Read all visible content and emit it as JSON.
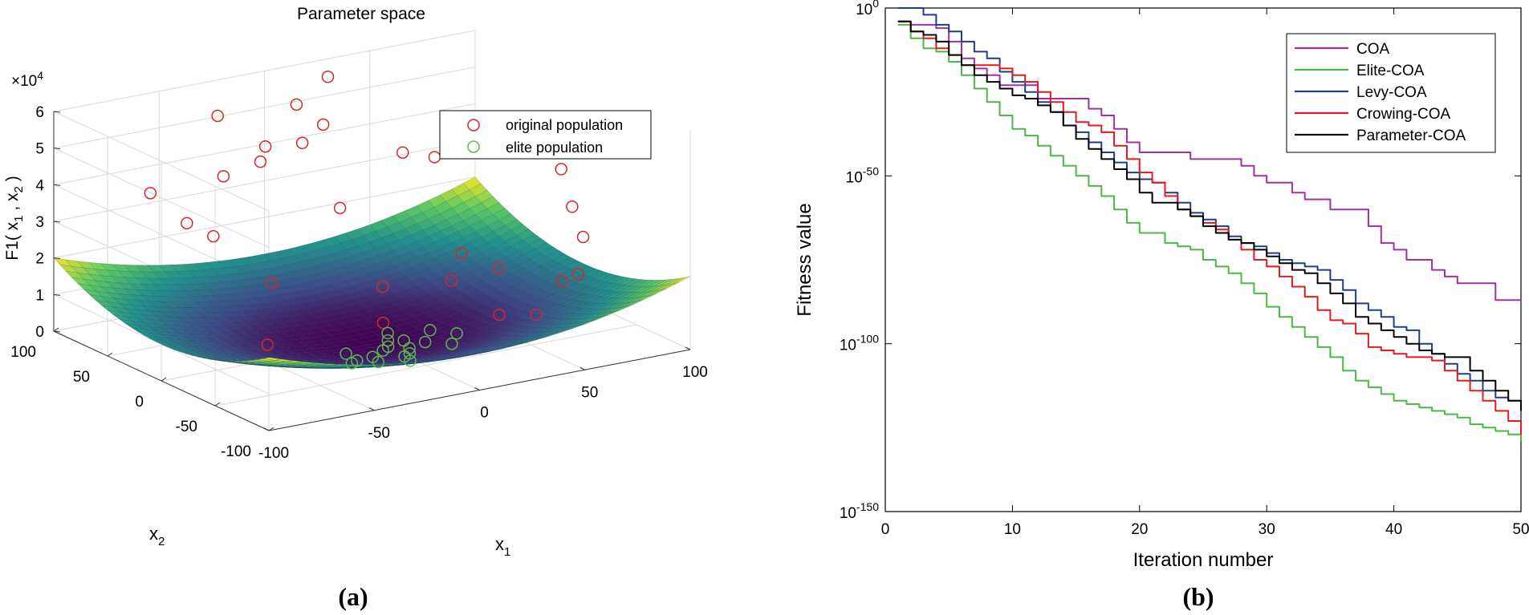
{
  "figure": {
    "panel_a_label": "(a)",
    "panel_b_label": "(b)"
  },
  "chart_data": [
    {
      "type": "surface3d",
      "title": "Parameter space",
      "xlabel": "x",
      "xlabel_sub": "1",
      "ylabel": "x",
      "ylabel_sub": "2",
      "zlabel": "F1( x  , x  )",
      "zlabel_parts": {
        "f": "F1( x",
        "s1": "1",
        "mid": " , x",
        "s2": "2",
        "end": " )"
      },
      "z_exponent_label": "×10",
      "z_exponent": "4",
      "x_ticks": [
        "-100",
        "-50",
        "0",
        "50",
        "100"
      ],
      "y_ticks": [
        "-100",
        "-50",
        "0",
        "50",
        "100"
      ],
      "z_ticks": [
        "0",
        "1",
        "2",
        "3",
        "4",
        "5",
        "6"
      ],
      "xlim": [
        -100,
        100
      ],
      "ylim": [
        -100,
        100
      ],
      "zlim": [
        0,
        60000
      ],
      "surface_function": "x1^2 + x2^2",
      "colormap": [
        "#440154",
        "#3b528b",
        "#21918c",
        "#5ec962",
        "#fde725"
      ],
      "grid": true,
      "legend": {
        "position": "top-right",
        "entries": [
          {
            "name": "original population",
            "color": "#d62728"
          },
          {
            "name": "elite population",
            "color": "#59b94a"
          }
        ]
      },
      "original_population": [
        {
          "x": -95,
          "y": 20,
          "z": 48000
        },
        {
          "x": -70,
          "y": 35,
          "z": 35000
        },
        {
          "x": -60,
          "y": 30,
          "z": 31000
        },
        {
          "x": -45,
          "y": 50,
          "z": 43000
        },
        {
          "x": -35,
          "y": 75,
          "z": 55000
        },
        {
          "x": -30,
          "y": 45,
          "z": 46000
        },
        {
          "x": -20,
          "y": 60,
          "z": 47000
        },
        {
          "x": -5,
          "y": 55,
          "z": 47000
        },
        {
          "x": 5,
          "y": 80,
          "z": 53000
        },
        {
          "x": 10,
          "y": 65,
          "z": 49000
        },
        {
          "x": 25,
          "y": 90,
          "z": 57000
        },
        {
          "x": 35,
          "y": 40,
          "z": 42000
        },
        {
          "x": 45,
          "y": 30,
          "z": 41000
        },
        {
          "x": -5,
          "y": 20,
          "z": 34000
        },
        {
          "x": -70,
          "y": -40,
          "z": 12000
        },
        {
          "x": -45,
          "y": 5,
          "z": 20000
        },
        {
          "x": -10,
          "y": -30,
          "z": 10000
        },
        {
          "x": 0,
          "y": -10,
          "z": 16000
        },
        {
          "x": 40,
          "y": -5,
          "z": 20000
        },
        {
          "x": 30,
          "y": -15,
          "z": 15000
        },
        {
          "x": 55,
          "y": -10,
          "z": 15000
        },
        {
          "x": 40,
          "y": -40,
          "z": 8000
        },
        {
          "x": 55,
          "y": -45,
          "z": 7000
        },
        {
          "x": 75,
          "y": -30,
          "z": 12000
        },
        {
          "x": 80,
          "y": -35,
          "z": 14000
        },
        {
          "x": 90,
          "y": -20,
          "z": 21000
        },
        {
          "x": 95,
          "y": 0,
          "z": 26000
        },
        {
          "x": 100,
          "y": 20,
          "z": 33000
        },
        {
          "x": 90,
          "y": 40,
          "z": 40000
        }
      ],
      "elite_population": [
        {
          "x": -30,
          "y": -40,
          "z": 2500
        },
        {
          "x": -25,
          "y": -35,
          "z": 2000
        },
        {
          "x": -20,
          "y": -45,
          "z": 2400
        },
        {
          "x": -15,
          "y": -30,
          "z": 1200
        },
        {
          "x": -10,
          "y": -55,
          "z": 3000
        },
        {
          "x": -5,
          "y": -20,
          "z": 500
        },
        {
          "x": 0,
          "y": -15,
          "z": 300
        },
        {
          "x": 5,
          "y": -25,
          "z": 700
        },
        {
          "x": 10,
          "y": -10,
          "z": 200
        },
        {
          "x": 15,
          "y": -20,
          "z": 600
        },
        {
          "x": 5,
          "y": -5,
          "z": 100
        },
        {
          "x": -5,
          "y": -40,
          "z": 1600
        },
        {
          "x": 20,
          "y": -35,
          "z": 1600
        },
        {
          "x": 25,
          "y": -5,
          "z": 700
        },
        {
          "x": 30,
          "y": -20,
          "z": 1300
        },
        {
          "x": 10,
          "y": 5,
          "z": 200
        },
        {
          "x": -20,
          "y": -15,
          "z": 600
        },
        {
          "x": 0,
          "y": -35,
          "z": 1200
        }
      ]
    },
    {
      "type": "line",
      "xlabel": "Iteration number",
      "ylabel": "Fitness value",
      "x_scale": "linear",
      "y_scale": "log",
      "xlim": [
        0,
        50
      ],
      "ylim_exponent": [
        -150,
        0
      ],
      "x_ticks": [
        "0",
        "10",
        "20",
        "30",
        "40",
        "50"
      ],
      "y_ticks": [
        {
          "base": "10",
          "exp": "0",
          "value_exp": 0
        },
        {
          "base": "10",
          "exp": "-50",
          "value_exp": -50
        },
        {
          "base": "10",
          "exp": "-100",
          "value_exp": -100
        },
        {
          "base": "10",
          "exp": "-150",
          "value_exp": -150
        }
      ],
      "grid": false,
      "legend": {
        "position": "top-right"
      },
      "series": [
        {
          "name": "COA",
          "color": "#a3309e",
          "x": [
            1,
            2,
            3,
            4,
            5,
            6,
            7,
            8,
            9,
            10,
            11,
            12,
            13,
            14,
            15,
            16,
            17,
            18,
            19,
            20,
            21,
            22,
            23,
            24,
            25,
            26,
            27,
            28,
            29,
            30,
            31,
            32,
            33,
            34,
            35,
            36,
            37,
            38,
            39,
            40,
            41,
            42,
            43,
            44,
            45,
            46,
            47,
            48,
            49,
            50
          ],
          "y_exp": [
            -4,
            -5,
            -5,
            -6,
            -10,
            -15,
            -18,
            -20,
            -23,
            -23,
            -23,
            -27,
            -27,
            -27,
            -27,
            -30,
            -32,
            -36,
            -40,
            -43,
            -43,
            -43,
            -43,
            -45,
            -45,
            -45,
            -45,
            -47,
            -50,
            -52,
            -52,
            -55,
            -57,
            -57,
            -60,
            -60,
            -60,
            -65,
            -70,
            -72,
            -75,
            -75,
            -78,
            -80,
            -82,
            -82,
            -82,
            -87,
            -87,
            -87
          ]
        },
        {
          "name": "Elite-COA",
          "color": "#4cb848",
          "x": [
            1,
            2,
            3,
            4,
            5,
            6,
            7,
            8,
            9,
            10,
            11,
            12,
            13,
            14,
            15,
            16,
            17,
            18,
            19,
            20,
            21,
            22,
            23,
            24,
            25,
            26,
            27,
            28,
            29,
            30,
            31,
            32,
            33,
            34,
            35,
            36,
            37,
            38,
            39,
            40,
            41,
            42,
            43,
            44,
            45,
            46,
            47,
            48,
            49,
            50
          ],
          "y_exp": [
            -5,
            -9,
            -12,
            -13,
            -16,
            -20,
            -24,
            -28,
            -32,
            -36,
            -38,
            -41,
            -44,
            -47,
            -50,
            -53,
            -56,
            -60,
            -64,
            -67,
            -67,
            -70,
            -71,
            -72,
            -75,
            -77,
            -79,
            -82,
            -85,
            -89,
            -92,
            -95,
            -98,
            -101,
            -104,
            -108,
            -111,
            -113,
            -115,
            -117,
            -118,
            -119,
            -120,
            -121,
            -122,
            -124,
            -125,
            -126,
            -127,
            -129
          ]
        },
        {
          "name": "Levy-COA",
          "color": "#1f3d8e",
          "x": [
            1,
            2,
            3,
            4,
            5,
            6,
            7,
            8,
            9,
            10,
            11,
            12,
            13,
            14,
            15,
            16,
            17,
            18,
            19,
            20,
            21,
            22,
            23,
            24,
            25,
            26,
            27,
            28,
            29,
            30,
            31,
            32,
            33,
            34,
            35,
            36,
            37,
            38,
            39,
            40,
            41,
            42,
            43,
            44,
            45,
            46,
            47,
            48,
            49,
            50
          ],
          "y_exp": [
            0,
            0,
            -2,
            -5,
            -7,
            -10,
            -13,
            -15,
            -19,
            -22,
            -25,
            -28,
            -31,
            -35,
            -37,
            -40,
            -43,
            -46,
            -49,
            -51,
            -52,
            -55,
            -58,
            -61,
            -63,
            -65,
            -68,
            -70,
            -71,
            -73,
            -75,
            -76,
            -77,
            -78,
            -81,
            -84,
            -88,
            -90,
            -92,
            -95,
            -96,
            -100,
            -103,
            -106,
            -109,
            -111,
            -114,
            -116,
            -117,
            -119
          ]
        },
        {
          "name": "Crowing-COA",
          "color": "#e41a1c",
          "x": [
            1,
            2,
            3,
            4,
            5,
            6,
            7,
            8,
            9,
            10,
            11,
            12,
            13,
            14,
            15,
            16,
            17,
            18,
            19,
            20,
            21,
            22,
            23,
            24,
            25,
            26,
            27,
            28,
            29,
            30,
            31,
            32,
            33,
            34,
            35,
            36,
            37,
            38,
            39,
            40,
            41,
            42,
            43,
            44,
            45,
            46,
            47,
            48,
            49,
            50
          ],
          "y_exp": [
            -4,
            -7,
            -9,
            -12,
            -14,
            -17,
            -17,
            -17,
            -18,
            -20,
            -22,
            -25,
            -28,
            -31,
            -34,
            -35,
            -37,
            -41,
            -45,
            -49,
            -52,
            -56,
            -60,
            -62,
            -64,
            -66,
            -69,
            -72,
            -75,
            -77,
            -80,
            -83,
            -86,
            -90,
            -93,
            -94,
            -97,
            -101,
            -102,
            -103,
            -104,
            -104,
            -105,
            -108,
            -111,
            -114,
            -117,
            -120,
            -123,
            -127
          ]
        },
        {
          "name": "Parameter-COA",
          "color": "#000000",
          "x": [
            1,
            2,
            3,
            4,
            5,
            6,
            7,
            8,
            9,
            10,
            11,
            12,
            13,
            14,
            15,
            16,
            17,
            18,
            19,
            20,
            21,
            22,
            23,
            24,
            25,
            26,
            27,
            28,
            29,
            30,
            31,
            32,
            33,
            34,
            35,
            36,
            37,
            38,
            39,
            40,
            41,
            42,
            43,
            44,
            45,
            46,
            47,
            48,
            49,
            50
          ],
          "y_exp": [
            -4,
            -7,
            -8,
            -10,
            -14,
            -17,
            -20,
            -22,
            -24,
            -26,
            -27,
            -29,
            -31,
            -35,
            -39,
            -42,
            -45,
            -48,
            -51,
            -55,
            -58,
            -58,
            -60,
            -62,
            -65,
            -67,
            -69,
            -70,
            -72,
            -74,
            -76,
            -78,
            -79,
            -82,
            -85,
            -88,
            -92,
            -94,
            -96,
            -98,
            -100,
            -102,
            -103,
            -104,
            -104,
            -108,
            -111,
            -114,
            -117,
            -120
          ]
        }
      ]
    }
  ]
}
